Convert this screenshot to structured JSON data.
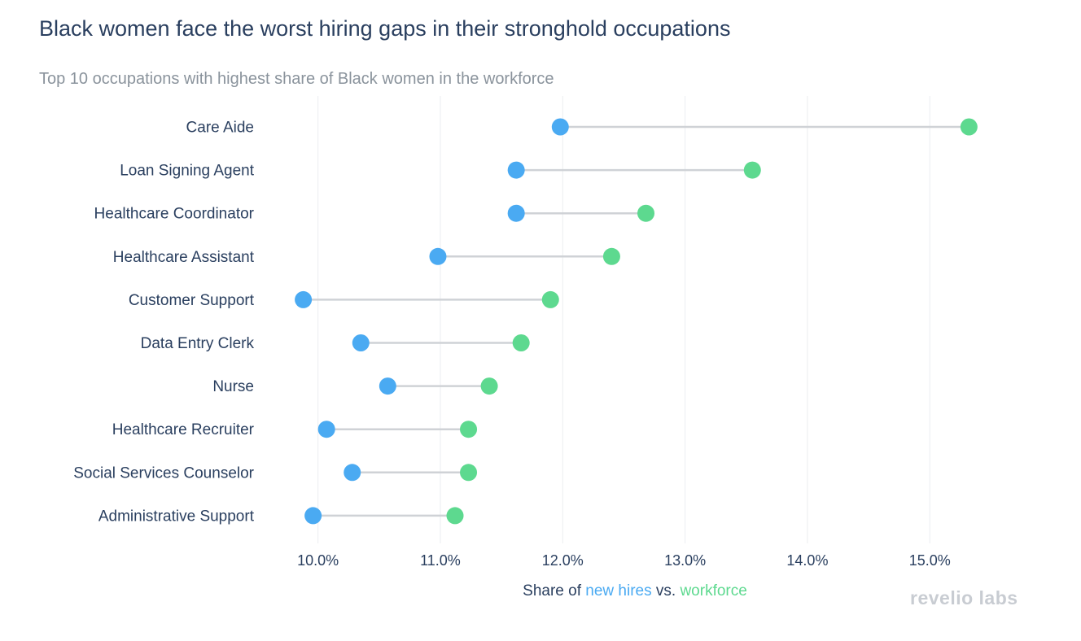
{
  "title": "Black women face the worst hiring gaps in their stronghold occupations",
  "subtitle": "Top 10 occupations with highest share of Black women in the workforce",
  "logo_text": "revelio labs",
  "colors": {
    "new_hires": "#4aaaf2",
    "workforce": "#5dd98f",
    "connector": "#cfd2d6",
    "grid": "#ebedf0",
    "text": "#2a3f5f"
  },
  "xaxis": {
    "title_parts": [
      "Share of ",
      "new hires",
      " vs. ",
      "workforce"
    ]
  },
  "chart_data": {
    "type": "scatter",
    "subtype": "dumbbell",
    "title": "Black women face the worst hiring gaps in their stronghold occupations",
    "subtitle": "Top 10 occupations with highest share of Black women in the workforce",
    "xlabel": "Share of new hires vs. workforce",
    "xlim": [
      9.55,
      15.75
    ],
    "xticks": [
      10,
      11,
      12,
      13,
      14,
      15
    ],
    "xtick_labels": [
      "10.0%",
      "11.0%",
      "12.0%",
      "13.0%",
      "14.0%",
      "15.0%"
    ],
    "categories": [
      "Care Aide",
      "Loan Signing Agent",
      "Healthcare Coordinator",
      "Healthcare Assistant",
      "Customer Support",
      "Data Entry Clerk",
      "Nurse",
      "Healthcare Recruiter",
      "Social Services Counselor",
      "Administrative Support"
    ],
    "series": [
      {
        "name": "new hires",
        "values": [
          11.98,
          11.62,
          11.62,
          10.98,
          9.88,
          10.35,
          10.57,
          10.07,
          10.28,
          9.96
        ]
      },
      {
        "name": "workforce",
        "values": [
          15.32,
          13.55,
          12.68,
          12.4,
          11.9,
          11.66,
          11.4,
          11.23,
          11.23,
          11.12
        ]
      }
    ],
    "grid": true,
    "legend": "none"
  }
}
